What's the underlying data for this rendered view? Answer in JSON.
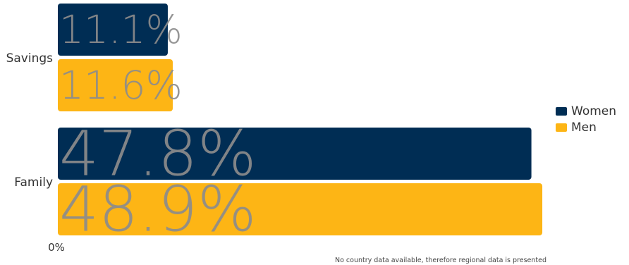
{
  "chart_data": {
    "type": "bar",
    "orientation": "horizontal",
    "categories": [
      "Savings",
      "Family"
    ],
    "series": [
      {
        "name": "Women",
        "color": "#002d54",
        "values": [
          11.1,
          47.8
        ],
        "labels": [
          "11.1%",
          "47.8%"
        ]
      },
      {
        "name": "Men",
        "color": "#fdb515",
        "values": [
          11.6,
          48.9
        ],
        "labels": [
          "11.6%",
          "48.9%"
        ]
      }
    ],
    "xlim": [
      0,
      56
    ],
    "x_tick_label": "0%",
    "legend": "right",
    "grid": false,
    "note": "No country data available, therefore regional data is presented"
  }
}
